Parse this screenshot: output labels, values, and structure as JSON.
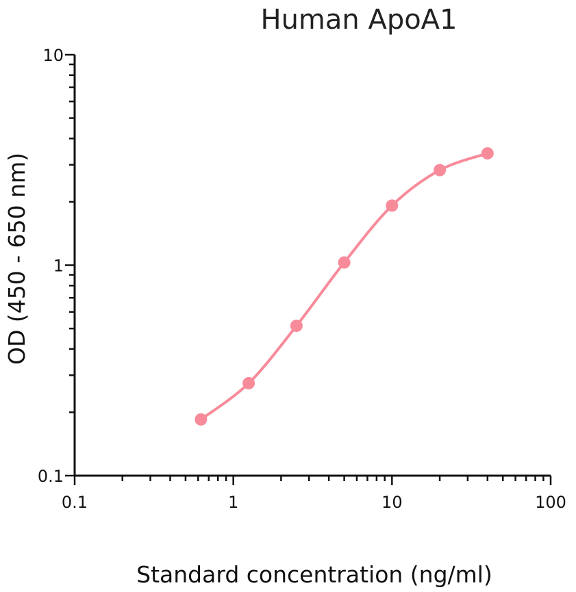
{
  "chart_data": {
    "type": "line",
    "title": "Human ApoA1",
    "xlabel": "Standard concentration (ng/ml)",
    "ylabel": "OD (450 - 650 nm)",
    "xscale": "log",
    "yscale": "log",
    "xlim": [
      0.1,
      100
    ],
    "ylim": [
      0.1,
      10
    ],
    "x_ticks": [
      "0.1",
      "1",
      "10",
      "100"
    ],
    "y_ticks": [
      "0.1",
      "1",
      "10"
    ],
    "grid": false,
    "series": [
      {
        "color": "#f78b9a",
        "x": [
          0.625,
          1.25,
          2.5,
          5,
          10,
          20,
          40
        ],
        "y": [
          0.185,
          0.275,
          0.515,
          1.03,
          1.92,
          2.83,
          3.4
        ]
      }
    ]
  }
}
